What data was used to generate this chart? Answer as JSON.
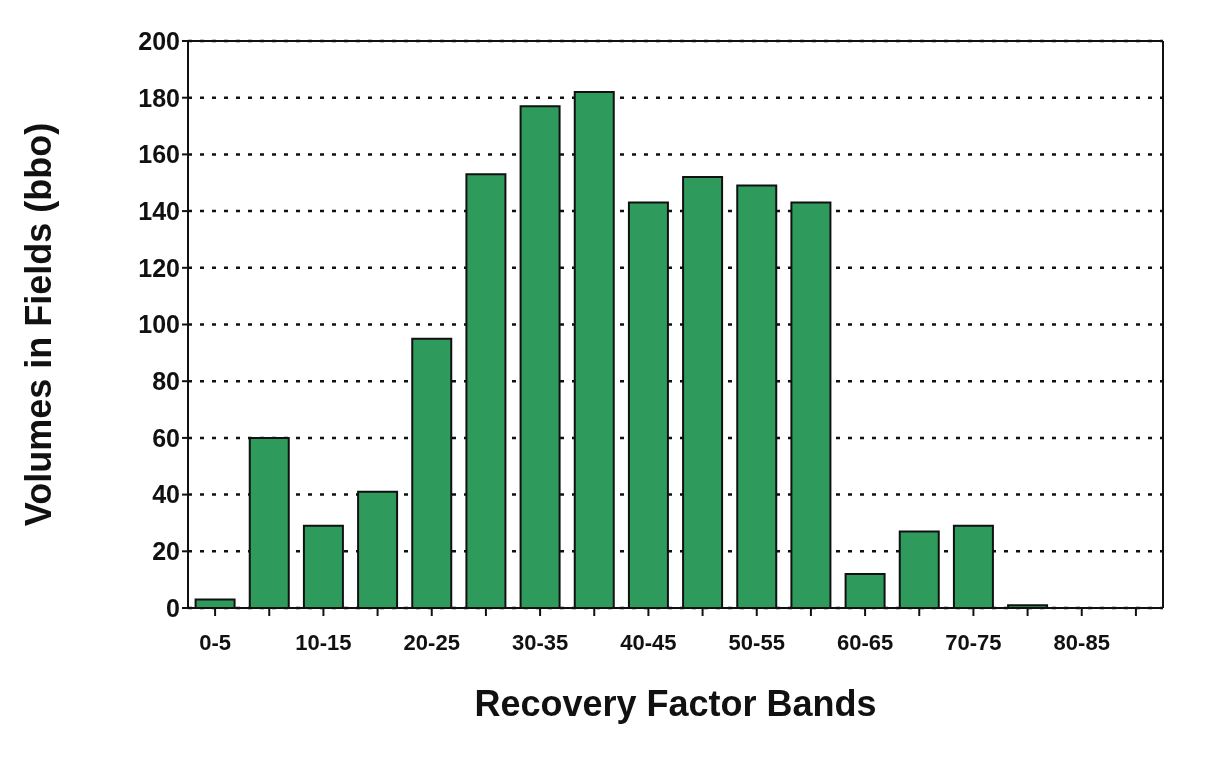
{
  "chart_data": {
    "type": "bar",
    "xlabel": "Recovery Factor Bands",
    "ylabel": "Volumes in Fields (bbo)",
    "categories": [
      "0-5",
      null,
      "10-15",
      null,
      "20-25",
      null,
      "30-35",
      null,
      "40-45",
      null,
      "50-55",
      null,
      "60-65",
      null,
      "70-75",
      null,
      "80-85",
      null
    ],
    "values": [
      3,
      60,
      29,
      41,
      95,
      153,
      177,
      182,
      143,
      152,
      149,
      143,
      12,
      27,
      29,
      1,
      null,
      null
    ],
    "color": "#2e9b5d",
    "ylim": [
      0,
      200
    ],
    "yticks": [
      0,
      20,
      40,
      60,
      80,
      100,
      120,
      140,
      160,
      180,
      200
    ],
    "grid": "y",
    "legend": false
  }
}
